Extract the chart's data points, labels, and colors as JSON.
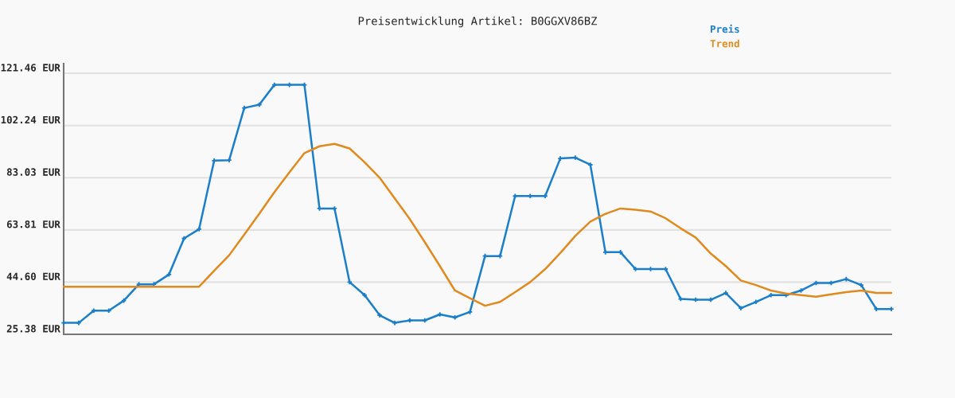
{
  "chart_data": {
    "type": "line",
    "title": "Preisentwicklung Artikel: B0GGXV86BZ",
    "categories": [
      null,
      null,
      null,
      null,
      null,
      null,
      null,
      null,
      null,
      null,
      null,
      null,
      null,
      null,
      null,
      null,
      null,
      null,
      null,
      null,
      null,
      null,
      null,
      null,
      null,
      null,
      null,
      null,
      null,
      null,
      null,
      null,
      null,
      null,
      null,
      null,
      null,
      null,
      null,
      null,
      null,
      null,
      null,
      null,
      null,
      null,
      null,
      null,
      null,
      null,
      null,
      null,
      null,
      null,
      null,
      null
    ],
    "series": [
      {
        "name": "Preis",
        "color": "#1a7fc8",
        "marker": "cross",
        "values": [
          29.6,
          29.6,
          34.1,
          34.1,
          37.8,
          43.8,
          43.8,
          47.4,
          60.7,
          64.1,
          89.3,
          89.5,
          108.7,
          109.9,
          117.2,
          117.2,
          117.2,
          71.7,
          71.7,
          44.6,
          39.8,
          32.4,
          29.6,
          30.5,
          30.5,
          32.7,
          31.6,
          33.6,
          54.2,
          54.2,
          76.3,
          76.3,
          76.3,
          90.1,
          90.4,
          87.8,
          55.6,
          55.6,
          49.4,
          49.4,
          49.4,
          38.4,
          38.1,
          38.1,
          40.6,
          35.0,
          37.3,
          39.8,
          39.8,
          41.5,
          44.3,
          44.3,
          45.7,
          43.5,
          34.7,
          34.7
        ]
      },
      {
        "name": "Trend",
        "color": "#e08a1e",
        "values": [
          42.9,
          42.9,
          42.9,
          42.9,
          42.9,
          42.9,
          42.9,
          42.9,
          42.9,
          42.9,
          48.8,
          54.5,
          62.1,
          69.8,
          77.7,
          85.0,
          92.1,
          94.6,
          95.5,
          93.8,
          88.7,
          83.0,
          75.4,
          67.8,
          59.3,
          50.5,
          41.5,
          38.7,
          35.9,
          37.3,
          40.9,
          44.6,
          49.4,
          55.3,
          61.6,
          66.9,
          69.7,
          71.7,
          71.2,
          70.6,
          68.1,
          64.4,
          61.0,
          55.1,
          50.5,
          45.2,
          43.5,
          41.5,
          40.4,
          39.8,
          39.2,
          40.1,
          40.9,
          41.5,
          40.6,
          40.6
        ]
      }
    ],
    "ylim": [
      25.38,
      125
    ],
    "yticks": [
      {
        "value": 25.38,
        "label": "25.38 EUR"
      },
      {
        "value": 44.6,
        "label": "44.60 EUR"
      },
      {
        "value": 63.81,
        "label": "63.81 EUR"
      },
      {
        "value": 83.03,
        "label": "83.03 EUR"
      },
      {
        "value": 102.24,
        "label": "102.24 EUR"
      },
      {
        "value": 121.46,
        "label": "121.46 EUR"
      }
    ],
    "grid": "y",
    "legend": "top right"
  }
}
